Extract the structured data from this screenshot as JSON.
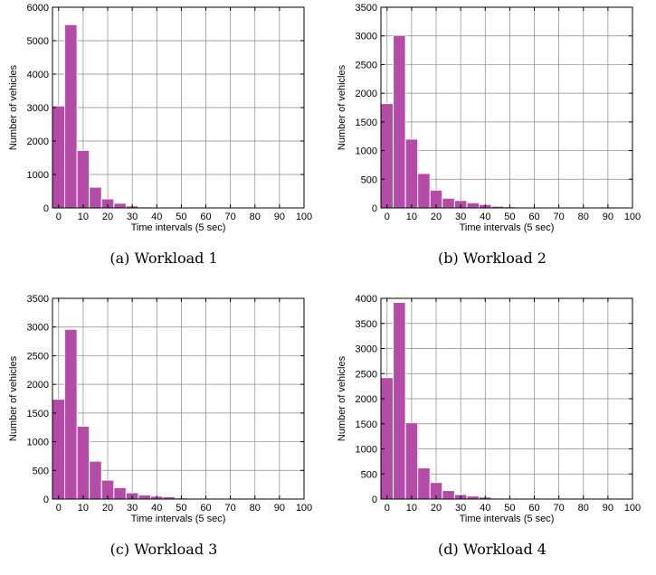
{
  "colors": {
    "bar": "#B44BA6",
    "grid": "#888888",
    "axis": "#000000"
  },
  "chart_data": [
    {
      "type": "bar",
      "caption": "(a) Workload 1",
      "xlabel": "Time intervals (5 sec)",
      "ylabel": "Number of vehicles",
      "xlim": [
        -2.5,
        100
      ],
      "ylim": [
        0,
        6000
      ],
      "xticks": [
        0,
        10,
        20,
        30,
        40,
        50,
        60,
        70,
        80,
        90,
        100
      ],
      "yticks": [
        0,
        1000,
        2000,
        3000,
        4000,
        5000,
        6000
      ],
      "bin_width": 5,
      "bin_centers": [
        0,
        5,
        10,
        15,
        20,
        25,
        30,
        35,
        40,
        45
      ],
      "values": [
        3050,
        5480,
        1720,
        620,
        270,
        140,
        60,
        30,
        15,
        5
      ],
      "grid": true
    },
    {
      "type": "bar",
      "caption": "(b) Workload 2",
      "xlabel": "Time intervals (5 sec)",
      "ylabel": "Number of vehicles",
      "xlim": [
        -2.5,
        100
      ],
      "ylim": [
        0,
        3500
      ],
      "xticks": [
        0,
        10,
        20,
        30,
        40,
        50,
        60,
        70,
        80,
        90,
        100
      ],
      "yticks": [
        0,
        500,
        1000,
        1500,
        2000,
        2500,
        3000,
        3500
      ],
      "bin_width": 5,
      "bin_centers": [
        0,
        5,
        10,
        15,
        20,
        25,
        30,
        35,
        40,
        45,
        50,
        55,
        60
      ],
      "values": [
        1820,
        3010,
        1200,
        600,
        310,
        170,
        130,
        90,
        60,
        30,
        20,
        10,
        5
      ],
      "grid": true
    },
    {
      "type": "bar",
      "caption": "(c) Workload 3",
      "xlabel": "Time intervals (5 sec)",
      "ylabel": "Number of vehicles",
      "xlim": [
        -2.5,
        100
      ],
      "ylim": [
        0,
        3500
      ],
      "xticks": [
        0,
        10,
        20,
        30,
        40,
        50,
        60,
        70,
        80,
        90,
        100
      ],
      "yticks": [
        0,
        500,
        1000,
        1500,
        2000,
        2500,
        3000,
        3500
      ],
      "bin_width": 5,
      "bin_centers": [
        0,
        5,
        10,
        15,
        20,
        25,
        30,
        35,
        40,
        45,
        50,
        55,
        60,
        65
      ],
      "values": [
        1740,
        2960,
        1270,
        660,
        330,
        200,
        110,
        70,
        50,
        40,
        20,
        15,
        10,
        5
      ],
      "grid": true
    },
    {
      "type": "bar",
      "caption": "(d) Workload 4",
      "xlabel": "Time intervals (5 sec)",
      "ylabel": "Number of vehicles",
      "xlim": [
        -2.5,
        100
      ],
      "ylim": [
        0,
        4000
      ],
      "xticks": [
        0,
        10,
        20,
        30,
        40,
        50,
        60,
        70,
        80,
        90,
        100
      ],
      "yticks": [
        0,
        500,
        1000,
        1500,
        2000,
        2500,
        3000,
        3500,
        4000
      ],
      "bin_width": 5,
      "bin_centers": [
        0,
        5,
        10,
        15,
        20,
        25,
        30,
        35,
        40,
        45,
        50
      ],
      "values": [
        2420,
        3920,
        1520,
        620,
        330,
        170,
        90,
        60,
        40,
        20,
        10
      ],
      "grid": true
    }
  ]
}
